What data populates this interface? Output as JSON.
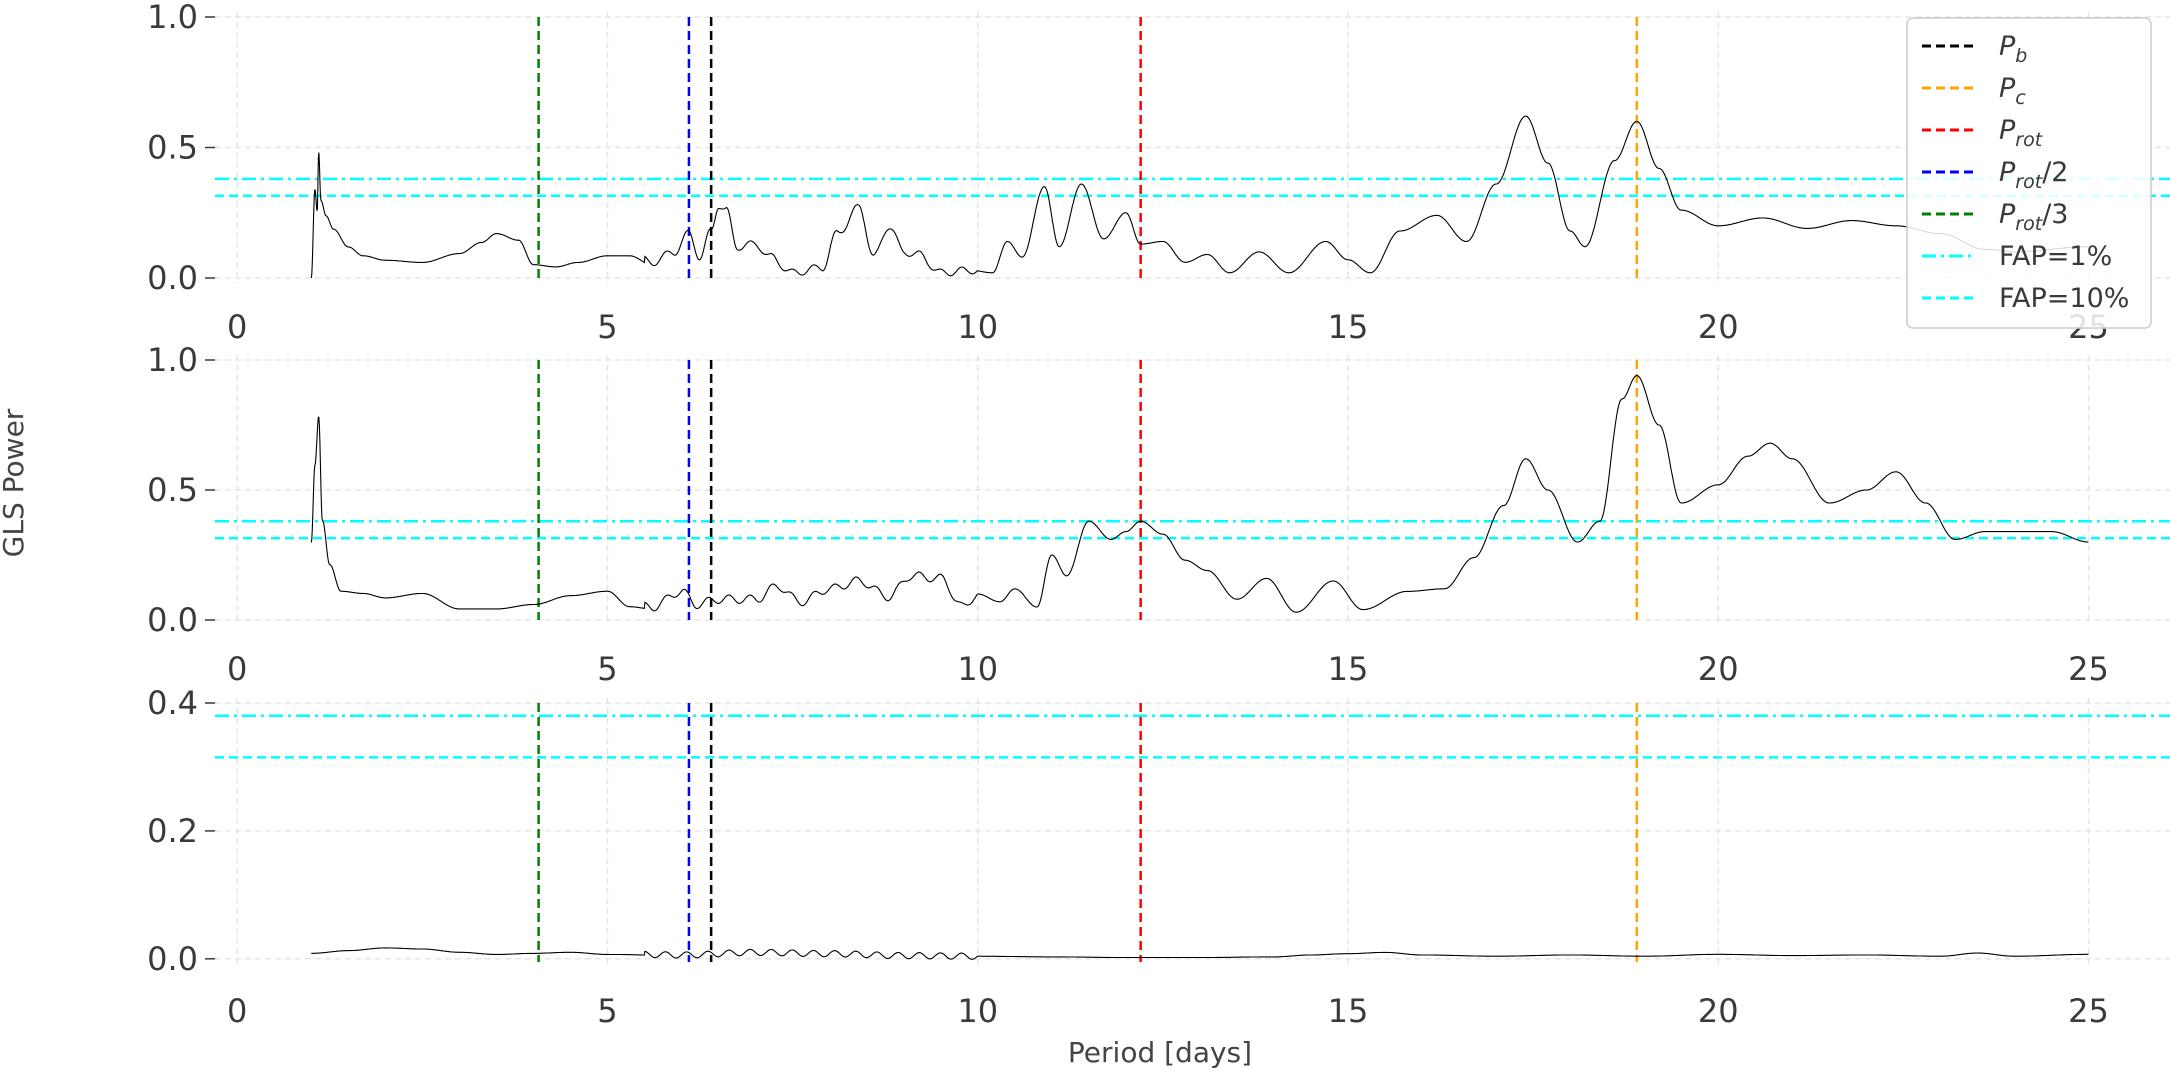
{
  "chart_data": {
    "type": "line",
    "ylabel": "GLS Power",
    "xlabel": "Period [days]",
    "xlim": [
      -0.3,
      26.1
    ],
    "xticks": [
      0,
      5,
      10,
      15,
      20,
      25
    ],
    "grid": true,
    "legend_position": "top-right",
    "colors": {
      "periodogram": "#000000",
      "P_b": "#000000",
      "P_c": "#ffa500",
      "P_rot": "#ff0000",
      "P_rot_2": "#0000ff",
      "P_rot_3": "#008000",
      "FAP": "#00ffff"
    },
    "vertical_lines": [
      {
        "key": "P_b",
        "x": 6.4,
        "style": "dashed"
      },
      {
        "key": "P_c",
        "x": 18.9,
        "style": "dashed"
      },
      {
        "key": "P_rot",
        "x": 12.2,
        "style": "dashed"
      },
      {
        "key": "P_rot_2",
        "x": 6.1,
        "style": "dashed"
      },
      {
        "key": "P_rot_3",
        "x": 4.07,
        "style": "dashed"
      }
    ],
    "fap_lines": [
      {
        "key": "FAP_1",
        "y": 0.38,
        "style": "dashdot"
      },
      {
        "key": "FAP_10",
        "y": 0.315,
        "style": "dashed"
      }
    ],
    "legend": [
      {
        "key": "P_b",
        "base": "P",
        "sub": "b",
        "suffix": "",
        "style": "dashed"
      },
      {
        "key": "P_c",
        "base": "P",
        "sub": "c",
        "suffix": "",
        "style": "dashed"
      },
      {
        "key": "P_rot",
        "base": "P",
        "sub": "rot",
        "suffix": "",
        "style": "dashed"
      },
      {
        "key": "P_rot_2",
        "base": "P",
        "sub": "rot",
        "suffix": "/2",
        "style": "dashed"
      },
      {
        "key": "P_rot_3",
        "base": "P",
        "sub": "rot",
        "suffix": "/3",
        "style": "dashed"
      },
      {
        "key": "FAP_1",
        "base": "FAP=1%",
        "sub": "",
        "suffix": "",
        "style": "dashdot"
      },
      {
        "key": "FAP_10",
        "base": "FAP=10%",
        "sub": "",
        "suffix": "",
        "style": "dashed"
      }
    ],
    "panels": [
      {
        "ylim": [
          0,
          1.0
        ],
        "yticks": [
          "0.0",
          "0.5",
          "1.0"
        ],
        "ytick_values": [
          0,
          0.5,
          1.0
        ],
        "noise_amp": 0.035,
        "series": [
          [
            1.0,
            0.0
          ],
          [
            1.05,
            0.4
          ],
          [
            1.08,
            0.3
          ],
          [
            1.1,
            0.57
          ],
          [
            1.13,
            0.35
          ],
          [
            1.2,
            0.28
          ],
          [
            1.3,
            0.22
          ],
          [
            1.5,
            0.14
          ],
          [
            1.7,
            0.1
          ],
          [
            2.0,
            0.08
          ],
          [
            2.5,
            0.07
          ],
          [
            3.0,
            0.11
          ],
          [
            3.3,
            0.16
          ],
          [
            3.5,
            0.2
          ],
          [
            3.8,
            0.17
          ],
          [
            4.0,
            0.06
          ],
          [
            4.3,
            0.05
          ],
          [
            4.6,
            0.07
          ],
          [
            5.0,
            0.1
          ],
          [
            5.3,
            0.1
          ],
          [
            5.6,
            0.06
          ],
          [
            5.9,
            0.1
          ],
          [
            6.1,
            0.17
          ],
          [
            6.25,
            0.08
          ],
          [
            6.4,
            0.18
          ],
          [
            6.5,
            0.28
          ],
          [
            6.6,
            0.26
          ],
          [
            6.75,
            0.12
          ],
          [
            7.0,
            0.13
          ],
          [
            7.2,
            0.08
          ],
          [
            7.5,
            0.02
          ],
          [
            7.9,
            0.04
          ],
          [
            8.1,
            0.17
          ],
          [
            8.4,
            0.27
          ],
          [
            8.6,
            0.08
          ],
          [
            8.8,
            0.2
          ],
          [
            9.0,
            0.1
          ],
          [
            9.2,
            0.09
          ],
          [
            9.5,
            0.02
          ],
          [
            9.9,
            0.03
          ],
          [
            10.2,
            0.02
          ],
          [
            10.4,
            0.14
          ],
          [
            10.6,
            0.08
          ],
          [
            10.9,
            0.35
          ],
          [
            11.1,
            0.12
          ],
          [
            11.4,
            0.36
          ],
          [
            11.7,
            0.15
          ],
          [
            12.0,
            0.25
          ],
          [
            12.2,
            0.13
          ],
          [
            12.5,
            0.14
          ],
          [
            12.8,
            0.06
          ],
          [
            13.1,
            0.09
          ],
          [
            13.4,
            0.02
          ],
          [
            13.8,
            0.1
          ],
          [
            14.2,
            0.02
          ],
          [
            14.7,
            0.14
          ],
          [
            15.0,
            0.07
          ],
          [
            15.3,
            0.02
          ],
          [
            15.7,
            0.18
          ],
          [
            16.2,
            0.24
          ],
          [
            16.6,
            0.14
          ],
          [
            17.0,
            0.36
          ],
          [
            17.4,
            0.62
          ],
          [
            17.7,
            0.44
          ],
          [
            18.0,
            0.18
          ],
          [
            18.2,
            0.12
          ],
          [
            18.6,
            0.45
          ],
          [
            18.9,
            0.6
          ],
          [
            19.2,
            0.42
          ],
          [
            19.5,
            0.26
          ],
          [
            20.0,
            0.2
          ],
          [
            20.6,
            0.23
          ],
          [
            21.2,
            0.19
          ],
          [
            21.8,
            0.22
          ],
          [
            22.4,
            0.2
          ],
          [
            23.0,
            0.17
          ],
          [
            23.6,
            0.11
          ],
          [
            24.0,
            0.1
          ],
          [
            25.0,
            0.12
          ]
        ]
      },
      {
        "ylim": [
          0,
          1.0
        ],
        "yticks": [
          "0.0",
          "0.5",
          "1.0"
        ],
        "ytick_values": [
          0,
          0.5,
          1.0
        ],
        "noise_amp": 0.04,
        "series": [
          [
            1.0,
            0.35
          ],
          [
            1.05,
            0.7
          ],
          [
            1.1,
            0.92
          ],
          [
            1.15,
            0.45
          ],
          [
            1.25,
            0.25
          ],
          [
            1.4,
            0.13
          ],
          [
            1.7,
            0.12
          ],
          [
            2.0,
            0.1
          ],
          [
            2.5,
            0.12
          ],
          [
            3.0,
            0.05
          ],
          [
            3.5,
            0.05
          ],
          [
            4.0,
            0.07
          ],
          [
            4.5,
            0.11
          ],
          [
            5.0,
            0.13
          ],
          [
            5.3,
            0.06
          ],
          [
            5.6,
            0.05
          ],
          [
            6.0,
            0.11
          ],
          [
            6.2,
            0.06
          ],
          [
            6.5,
            0.08
          ],
          [
            7.0,
            0.08
          ],
          [
            7.3,
            0.13
          ],
          [
            7.6,
            0.07
          ],
          [
            8.0,
            0.12
          ],
          [
            8.4,
            0.15
          ],
          [
            8.8,
            0.09
          ],
          [
            9.1,
            0.17
          ],
          [
            9.5,
            0.16
          ],
          [
            9.8,
            0.05
          ],
          [
            10.0,
            0.1
          ],
          [
            10.3,
            0.07
          ],
          [
            10.5,
            0.12
          ],
          [
            10.8,
            0.05
          ],
          [
            11.0,
            0.25
          ],
          [
            11.2,
            0.17
          ],
          [
            11.5,
            0.38
          ],
          [
            11.8,
            0.31
          ],
          [
            12.0,
            0.34
          ],
          [
            12.2,
            0.38
          ],
          [
            12.5,
            0.33
          ],
          [
            12.8,
            0.23
          ],
          [
            13.1,
            0.19
          ],
          [
            13.5,
            0.08
          ],
          [
            13.9,
            0.16
          ],
          [
            14.3,
            0.03
          ],
          [
            14.8,
            0.15
          ],
          [
            15.2,
            0.04
          ],
          [
            15.8,
            0.11
          ],
          [
            16.3,
            0.12
          ],
          [
            16.7,
            0.24
          ],
          [
            17.1,
            0.44
          ],
          [
            17.4,
            0.62
          ],
          [
            17.7,
            0.5
          ],
          [
            18.1,
            0.3
          ],
          [
            18.4,
            0.38
          ],
          [
            18.7,
            0.85
          ],
          [
            18.9,
            0.94
          ],
          [
            19.2,
            0.75
          ],
          [
            19.5,
            0.45
          ],
          [
            20.0,
            0.52
          ],
          [
            20.4,
            0.63
          ],
          [
            20.7,
            0.68
          ],
          [
            21.0,
            0.62
          ],
          [
            21.5,
            0.45
          ],
          [
            22.0,
            0.5
          ],
          [
            22.4,
            0.57
          ],
          [
            22.8,
            0.45
          ],
          [
            23.2,
            0.31
          ],
          [
            23.6,
            0.34
          ],
          [
            24.0,
            0.34
          ],
          [
            24.5,
            0.34
          ],
          [
            25.0,
            0.3
          ]
        ]
      },
      {
        "ylim": [
          -0.005,
          0.4
        ],
        "yticks": [
          "0.0",
          "0.2",
          "0.4"
        ],
        "ytick_values": [
          0,
          0.2,
          0.4
        ],
        "noise_amp": 0.012,
        "series": [
          [
            1.0,
            0.01
          ],
          [
            1.5,
            0.015
          ],
          [
            2.0,
            0.02
          ],
          [
            2.5,
            0.018
          ],
          [
            3.0,
            0.012
          ],
          [
            3.5,
            0.008
          ],
          [
            4.0,
            0.01
          ],
          [
            4.5,
            0.012
          ],
          [
            5.0,
            0.008
          ],
          [
            6.0,
            0.006
          ],
          [
            7.0,
            0.01
          ],
          [
            8.0,
            0.008
          ],
          [
            9.0,
            0.005
          ],
          [
            10.0,
            0.004
          ],
          [
            11.0,
            0.003
          ],
          [
            12.0,
            0.002
          ],
          [
            13.0,
            0.002
          ],
          [
            14.0,
            0.003
          ],
          [
            14.5,
            0.006
          ],
          [
            15.0,
            0.008
          ],
          [
            15.5,
            0.01
          ],
          [
            16.0,
            0.006
          ],
          [
            17.0,
            0.004
          ],
          [
            18.0,
            0.006
          ],
          [
            19.0,
            0.004
          ],
          [
            20.0,
            0.007
          ],
          [
            21.0,
            0.005
          ],
          [
            22.0,
            0.006
          ],
          [
            23.0,
            0.004
          ],
          [
            23.5,
            0.009
          ],
          [
            24.0,
            0.004
          ],
          [
            25.0,
            0.007
          ]
        ]
      }
    ]
  }
}
